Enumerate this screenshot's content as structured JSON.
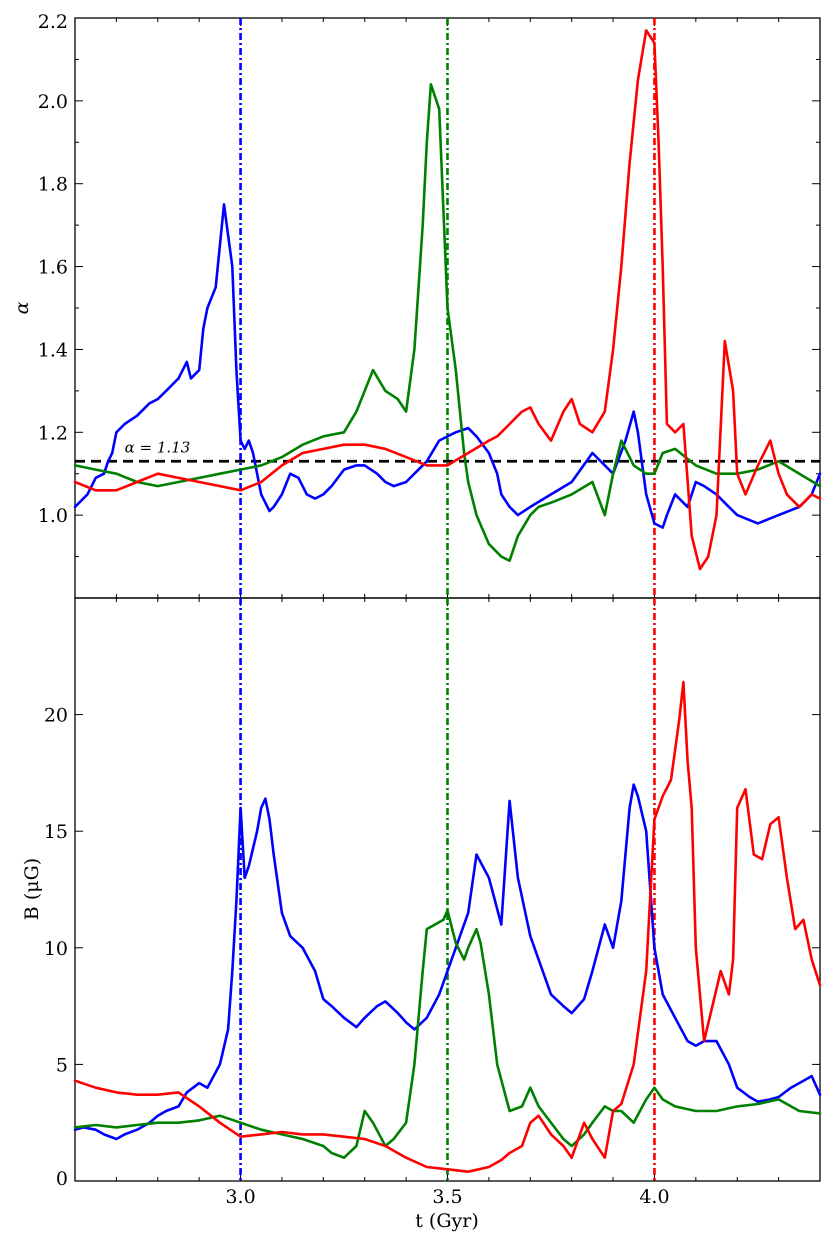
{
  "chart_data": [
    {
      "type": "line",
      "panel": "top",
      "ylabel": "α",
      "xlim": [
        2.6,
        4.4
      ],
      "ylim": [
        0.8,
        2.2
      ],
      "yticks": [
        1.0,
        1.2,
        1.4,
        1.6,
        1.8,
        2.0,
        2.2
      ],
      "ytick_labels": [
        "1.0",
        "1.2",
        "1.4",
        "1.6",
        "1.8",
        "2.0",
        "2.2"
      ],
      "reference_line": {
        "y": 1.13,
        "style": "dashed",
        "color": "#000000",
        "label": "α = 1.13"
      },
      "vertical_lines": [
        {
          "x": 3.0,
          "color": "#0000ff",
          "style": "dash-dot"
        },
        {
          "x": 3.5,
          "color": "#008000",
          "style": "dash-dot"
        },
        {
          "x": 4.0,
          "color": "#ff0000",
          "style": "dash-dot"
        }
      ],
      "series": [
        {
          "color": "#0000ff",
          "x": [
            2.6,
            2.63,
            2.65,
            2.67,
            2.68,
            2.69,
            2.7,
            2.72,
            2.75,
            2.78,
            2.8,
            2.82,
            2.85,
            2.87,
            2.88,
            2.9,
            2.91,
            2.92,
            2.94,
            2.96,
            2.98,
            2.99,
            3.0,
            3.01,
            3.02,
            3.03,
            3.05,
            3.07,
            3.08,
            3.1,
            3.12,
            3.14,
            3.16,
            3.18,
            3.2,
            3.22,
            3.25,
            3.28,
            3.3,
            3.33,
            3.35,
            3.37,
            3.4,
            3.42,
            3.45,
            3.48,
            3.5,
            3.52,
            3.55,
            3.57,
            3.6,
            3.62,
            3.63,
            3.65,
            3.67,
            3.7,
            3.75,
            3.8,
            3.85,
            3.9,
            3.93,
            3.95,
            3.96,
            3.98,
            4.0,
            4.02,
            4.03,
            4.05,
            4.08,
            4.1,
            4.12,
            4.15,
            4.18,
            4.2,
            4.25,
            4.3,
            4.35,
            4.38,
            4.4
          ],
          "values": [
            1.02,
            1.05,
            1.09,
            1.1,
            1.13,
            1.15,
            1.2,
            1.22,
            1.24,
            1.27,
            1.28,
            1.3,
            1.33,
            1.37,
            1.33,
            1.35,
            1.45,
            1.5,
            1.55,
            1.75,
            1.6,
            1.35,
            1.18,
            1.16,
            1.18,
            1.15,
            1.05,
            1.01,
            1.02,
            1.05,
            1.1,
            1.09,
            1.05,
            1.04,
            1.05,
            1.07,
            1.11,
            1.12,
            1.12,
            1.1,
            1.08,
            1.07,
            1.08,
            1.1,
            1.13,
            1.18,
            1.19,
            1.2,
            1.21,
            1.19,
            1.15,
            1.1,
            1.05,
            1.02,
            1.0,
            1.02,
            1.05,
            1.08,
            1.15,
            1.1,
            1.18,
            1.25,
            1.2,
            1.05,
            0.98,
            0.97,
            1.0,
            1.05,
            1.02,
            1.08,
            1.07,
            1.05,
            1.02,
            1.0,
            0.98,
            1.0,
            1.02,
            1.05,
            1.1
          ]
        },
        {
          "color": "#008000",
          "x": [
            2.6,
            2.65,
            2.7,
            2.75,
            2.8,
            2.85,
            2.9,
            2.95,
            3.0,
            3.05,
            3.1,
            3.15,
            3.2,
            3.25,
            3.28,
            3.3,
            3.32,
            3.35,
            3.38,
            3.4,
            3.42,
            3.44,
            3.45,
            3.46,
            3.48,
            3.5,
            3.52,
            3.54,
            3.55,
            3.57,
            3.6,
            3.63,
            3.65,
            3.67,
            3.7,
            3.72,
            3.75,
            3.8,
            3.85,
            3.88,
            3.9,
            3.92,
            3.95,
            3.98,
            4.0,
            4.02,
            4.05,
            4.1,
            4.15,
            4.2,
            4.25,
            4.3,
            4.35,
            4.4
          ],
          "values": [
            1.12,
            1.11,
            1.1,
            1.08,
            1.07,
            1.08,
            1.09,
            1.1,
            1.11,
            1.12,
            1.14,
            1.17,
            1.19,
            1.2,
            1.25,
            1.3,
            1.35,
            1.3,
            1.28,
            1.25,
            1.4,
            1.7,
            1.9,
            2.04,
            1.98,
            1.5,
            1.35,
            1.15,
            1.08,
            1.0,
            0.93,
            0.9,
            0.89,
            0.95,
            1.0,
            1.02,
            1.03,
            1.05,
            1.08,
            1.0,
            1.1,
            1.18,
            1.12,
            1.1,
            1.1,
            1.15,
            1.16,
            1.12,
            1.1,
            1.1,
            1.11,
            1.13,
            1.1,
            1.07
          ]
        },
        {
          "color": "#ff0000",
          "x": [
            2.6,
            2.65,
            2.7,
            2.75,
            2.8,
            2.85,
            2.9,
            2.95,
            3.0,
            3.05,
            3.1,
            3.15,
            3.2,
            3.25,
            3.3,
            3.35,
            3.4,
            3.45,
            3.5,
            3.55,
            3.6,
            3.62,
            3.65,
            3.68,
            3.7,
            3.72,
            3.75,
            3.78,
            3.8,
            3.82,
            3.85,
            3.88,
            3.9,
            3.92,
            3.94,
            3.96,
            3.98,
            4.0,
            4.01,
            4.02,
            4.03,
            4.05,
            4.07,
            4.09,
            4.11,
            4.13,
            4.15,
            4.17,
            4.19,
            4.2,
            4.22,
            4.25,
            4.28,
            4.3,
            4.32,
            4.35,
            4.38,
            4.4
          ],
          "values": [
            1.08,
            1.06,
            1.06,
            1.08,
            1.1,
            1.09,
            1.08,
            1.07,
            1.06,
            1.08,
            1.12,
            1.15,
            1.16,
            1.17,
            1.17,
            1.16,
            1.14,
            1.12,
            1.12,
            1.15,
            1.18,
            1.19,
            1.22,
            1.25,
            1.26,
            1.22,
            1.18,
            1.25,
            1.28,
            1.22,
            1.2,
            1.25,
            1.4,
            1.6,
            1.85,
            2.05,
            2.17,
            2.14,
            1.9,
            1.6,
            1.22,
            1.2,
            1.22,
            0.95,
            0.87,
            0.9,
            1.0,
            1.42,
            1.3,
            1.1,
            1.05,
            1.12,
            1.18,
            1.1,
            1.05,
            1.02,
            1.05,
            1.04
          ]
        }
      ]
    },
    {
      "type": "line",
      "panel": "bottom",
      "xlabel": "t (Gyr)",
      "ylabel": "B (μG)",
      "xlim": [
        2.6,
        4.4
      ],
      "ylim": [
        0,
        25
      ],
      "xticks": [
        3.0,
        3.5,
        4.0
      ],
      "xtick_labels": [
        "3.0",
        "3.5",
        "4.0"
      ],
      "yticks": [
        0,
        5,
        10,
        15,
        20
      ],
      "ytick_labels": [
        "0",
        "5",
        "10",
        "15",
        "20"
      ],
      "series": [
        {
          "color": "#0000ff",
          "x": [
            2.6,
            2.62,
            2.65,
            2.67,
            2.7,
            2.72,
            2.75,
            2.78,
            2.8,
            2.82,
            2.85,
            2.87,
            2.9,
            2.92,
            2.95,
            2.97,
            2.98,
            2.99,
            3.0,
            3.01,
            3.02,
            3.04,
            3.05,
            3.06,
            3.07,
            3.08,
            3.1,
            3.12,
            3.15,
            3.18,
            3.2,
            3.22,
            3.25,
            3.28,
            3.3,
            3.33,
            3.35,
            3.38,
            3.4,
            3.42,
            3.45,
            3.48,
            3.5,
            3.52,
            3.55,
            3.57,
            3.6,
            3.63,
            3.65,
            3.67,
            3.7,
            3.73,
            3.75,
            3.78,
            3.8,
            3.83,
            3.85,
            3.88,
            3.9,
            3.92,
            3.94,
            3.95,
            3.96,
            3.98,
            4.0,
            4.02,
            4.05,
            4.08,
            4.1,
            4.12,
            4.15,
            4.18,
            4.2,
            4.23,
            4.25,
            4.28,
            4.3,
            4.33,
            4.35,
            4.38,
            4.4
          ],
          "values": [
            2.2,
            2.3,
            2.2,
            2.0,
            1.8,
            2.0,
            2.2,
            2.5,
            2.8,
            3.0,
            3.2,
            3.8,
            4.2,
            4.0,
            5.0,
            6.5,
            9.0,
            12.0,
            16.0,
            13.0,
            13.5,
            15.0,
            16.0,
            16.4,
            15.5,
            14.0,
            11.5,
            10.5,
            10.0,
            9.0,
            7.8,
            7.5,
            7.0,
            6.6,
            7.0,
            7.5,
            7.7,
            7.2,
            6.8,
            6.5,
            7.0,
            8.0,
            9.0,
            10.0,
            11.5,
            14.0,
            13.0,
            11.0,
            16.3,
            13.0,
            10.5,
            9.0,
            8.0,
            7.5,
            7.2,
            7.8,
            9.0,
            11.0,
            10.0,
            12.0,
            16.0,
            17.0,
            16.5,
            15.0,
            10.0,
            8.0,
            7.0,
            6.0,
            5.8,
            6.0,
            6.0,
            5.0,
            4.0,
            3.6,
            3.4,
            3.5,
            3.6,
            4.0,
            4.2,
            4.5,
            3.7
          ]
        },
        {
          "color": "#008000",
          "x": [
            2.6,
            2.65,
            2.7,
            2.75,
            2.8,
            2.85,
            2.9,
            2.95,
            3.0,
            3.05,
            3.1,
            3.15,
            3.2,
            3.22,
            3.25,
            3.28,
            3.3,
            3.32,
            3.35,
            3.37,
            3.4,
            3.42,
            3.44,
            3.45,
            3.47,
            3.49,
            3.5,
            3.52,
            3.54,
            3.55,
            3.57,
            3.58,
            3.6,
            3.62,
            3.65,
            3.68,
            3.7,
            3.72,
            3.75,
            3.78,
            3.8,
            3.83,
            3.85,
            3.88,
            3.9,
            3.92,
            3.95,
            3.98,
            4.0,
            4.02,
            4.05,
            4.1,
            4.15,
            4.2,
            4.25,
            4.3,
            4.35,
            4.4
          ],
          "values": [
            2.3,
            2.4,
            2.3,
            2.4,
            2.5,
            2.5,
            2.6,
            2.8,
            2.5,
            2.2,
            2.0,
            1.8,
            1.5,
            1.2,
            1.0,
            1.5,
            3.0,
            2.5,
            1.5,
            1.8,
            2.5,
            5.0,
            9.0,
            10.8,
            11.0,
            11.2,
            11.6,
            10.2,
            9.5,
            10.0,
            10.8,
            10.2,
            8.0,
            5.0,
            3.0,
            3.2,
            4.0,
            3.2,
            2.5,
            1.8,
            1.5,
            2.0,
            2.5,
            3.2,
            3.0,
            3.0,
            2.5,
            3.5,
            4.0,
            3.5,
            3.2,
            3.0,
            3.0,
            3.2,
            3.3,
            3.5,
            3.0,
            2.9
          ]
        },
        {
          "color": "#ff0000",
          "x": [
            2.6,
            2.65,
            2.7,
            2.75,
            2.8,
            2.85,
            2.9,
            2.95,
            3.0,
            3.05,
            3.1,
            3.15,
            3.2,
            3.25,
            3.3,
            3.35,
            3.4,
            3.45,
            3.5,
            3.55,
            3.6,
            3.63,
            3.65,
            3.68,
            3.7,
            3.72,
            3.75,
            3.78,
            3.8,
            3.83,
            3.85,
            3.88,
            3.9,
            3.92,
            3.95,
            3.98,
            4.0,
            4.02,
            4.04,
            4.06,
            4.07,
            4.08,
            4.09,
            4.1,
            4.12,
            4.14,
            4.16,
            4.18,
            4.19,
            4.2,
            4.22,
            4.24,
            4.26,
            4.28,
            4.3,
            4.32,
            4.34,
            4.36,
            4.38,
            4.4
          ],
          "values": [
            4.3,
            4.0,
            3.8,
            3.7,
            3.7,
            3.8,
            3.2,
            2.5,
            1.9,
            2.0,
            2.1,
            2.0,
            2.0,
            1.9,
            1.8,
            1.5,
            1.0,
            0.6,
            0.5,
            0.4,
            0.6,
            0.9,
            1.2,
            1.5,
            2.5,
            2.8,
            2.0,
            1.5,
            1.0,
            2.5,
            1.8,
            1.0,
            3.0,
            3.3,
            5.0,
            9.0,
            15.5,
            16.5,
            17.2,
            19.8,
            21.4,
            18.0,
            16.0,
            10.0,
            6.0,
            7.5,
            9.0,
            8.0,
            9.5,
            16.0,
            16.8,
            14.0,
            13.8,
            15.3,
            15.6,
            13.0,
            10.8,
            11.2,
            9.5,
            8.4
          ]
        }
      ]
    }
  ]
}
